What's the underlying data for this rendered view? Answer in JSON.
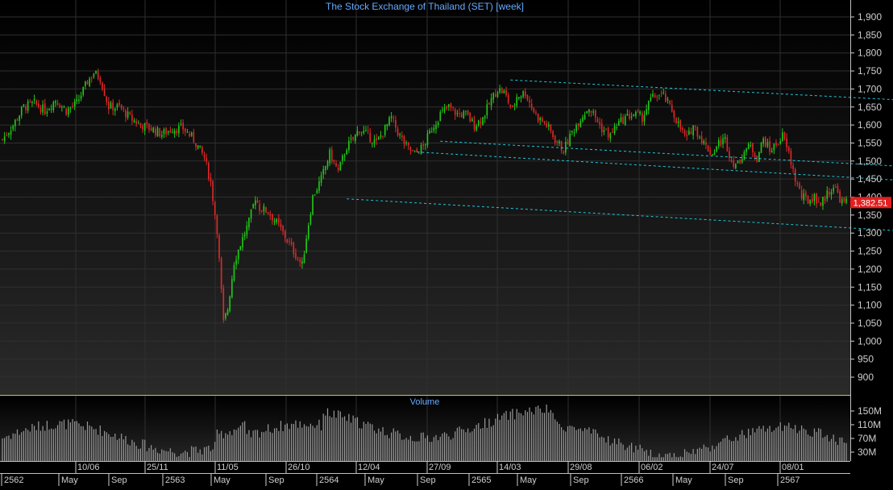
{
  "chart_data": {
    "type": "candlestick",
    "title": "The Stock Exchange of Thailand (SET) [week]",
    "volume_title": "Volume",
    "last_price_label": "1,382.51",
    "last_price": 1382.51,
    "price_axis": {
      "ylim": [
        850,
        1925
      ],
      "ticks": [
        "1,900",
        "1,850",
        "1,800",
        "1,750",
        "1,700",
        "1,650",
        "1,600",
        "1,550",
        "1,500",
        "1,450",
        "1,400",
        "1,350",
        "1,300",
        "1,250",
        "1,200",
        "1,150",
        "1,100",
        "1,050",
        "1,000",
        "950",
        "900"
      ]
    },
    "volume_axis": {
      "ticks": [
        "150M",
        "110M",
        "70M",
        "30M"
      ]
    },
    "date_row_1": [
      "10/06",
      "25/11",
      "11/05",
      "26/10",
      "12/04",
      "27/09",
      "14/03",
      "29/08",
      "06/02",
      "24/07",
      "08/01"
    ],
    "date_row_2": [
      "2562",
      "May",
      "Sep",
      "2563",
      "May",
      "Sep",
      "2564",
      "May",
      "Sep",
      "2565",
      "May",
      "Sep",
      "2566",
      "May",
      "Sep",
      "2567"
    ],
    "price_anchors": [
      [
        0,
        1560
      ],
      [
        5,
        1600
      ],
      [
        10,
        1650
      ],
      [
        15,
        1660
      ],
      [
        20,
        1640
      ],
      [
        25,
        1670
      ],
      [
        30,
        1640
      ],
      [
        35,
        1660
      ],
      [
        40,
        1720
      ],
      [
        43,
        1745
      ],
      [
        46,
        1730
      ],
      [
        50,
        1650
      ],
      [
        55,
        1650
      ],
      [
        60,
        1620
      ],
      [
        65,
        1600
      ],
      [
        70,
        1590
      ],
      [
        75,
        1575
      ],
      [
        80,
        1590
      ],
      [
        85,
        1590
      ],
      [
        90,
        1560
      ],
      [
        95,
        1510
      ],
      [
        98,
        1440
      ],
      [
        101,
        1310
      ],
      [
        104,
        1050
      ],
      [
        106,
        1090
      ],
      [
        109,
        1220
      ],
      [
        112,
        1270
      ],
      [
        116,
        1330
      ],
      [
        119,
        1400
      ],
      [
        121,
        1370
      ],
      [
        125,
        1360
      ],
      [
        130,
        1320
      ],
      [
        133,
        1290
      ],
      [
        137,
        1250
      ],
      [
        141,
        1210
      ],
      [
        143,
        1290
      ],
      [
        146,
        1400
      ],
      [
        150,
        1450
      ],
      [
        154,
        1520
      ],
      [
        158,
        1470
      ],
      [
        162,
        1540
      ],
      [
        165,
        1560
      ],
      [
        168,
        1590
      ],
      [
        172,
        1570
      ],
      [
        176,
        1550
      ],
      [
        180,
        1590
      ],
      [
        183,
        1620
      ],
      [
        186,
        1580
      ],
      [
        190,
        1540
      ],
      [
        194,
        1520
      ],
      [
        198,
        1540
      ],
      [
        202,
        1590
      ],
      [
        206,
        1630
      ],
      [
        210,
        1650
      ],
      [
        214,
        1630
      ],
      [
        218,
        1630
      ],
      [
        222,
        1600
      ],
      [
        226,
        1620
      ],
      [
        230,
        1670
      ],
      [
        233,
        1700
      ],
      [
        236,
        1690
      ],
      [
        240,
        1640
      ],
      [
        242,
        1680
      ],
      [
        246,
        1690
      ],
      [
        249,
        1650
      ],
      [
        252,
        1620
      ],
      [
        256,
        1600
      ],
      [
        260,
        1560
      ],
      [
        264,
        1530
      ],
      [
        268,
        1580
      ],
      [
        272,
        1620
      ],
      [
        276,
        1650
      ],
      [
        279,
        1620
      ],
      [
        282,
        1590
      ],
      [
        286,
        1570
      ],
      [
        289,
        1600
      ],
      [
        293,
        1620
      ],
      [
        297,
        1630
      ],
      [
        301,
        1620
      ],
      [
        305,
        1670
      ],
      [
        308,
        1685
      ],
      [
        311,
        1680
      ],
      [
        315,
        1640
      ],
      [
        319,
        1590
      ],
      [
        322,
        1560
      ],
      [
        325,
        1600
      ],
      [
        328,
        1570
      ],
      [
        331,
        1540
      ],
      [
        334,
        1520
      ],
      [
        337,
        1550
      ],
      [
        340,
        1560
      ],
      [
        343,
        1500
      ],
      [
        346,
        1490
      ],
      [
        349,
        1530
      ],
      [
        352,
        1540
      ],
      [
        355,
        1510
      ],
      [
        358,
        1560
      ],
      [
        361,
        1530
      ],
      [
        364,
        1545
      ],
      [
        367,
        1570
      ],
      [
        370,
        1520
      ],
      [
        373,
        1450
      ],
      [
        376,
        1400
      ],
      [
        379,
        1390
      ],
      [
        382,
        1400
      ],
      [
        385,
        1380
      ],
      [
        388,
        1410
      ],
      [
        391,
        1430
      ],
      [
        393,
        1410
      ],
      [
        395,
        1385
      ]
    ],
    "volume_seed": 7,
    "trend_lines": [
      {
        "p1": [
          239,
          1725
        ],
        "p2": [
          470,
          1655
        ]
      },
      {
        "p1": [
          206,
          1555
        ],
        "p2": [
          470,
          1470
        ]
      },
      {
        "p1": [
          195,
          1525
        ],
        "p2": [
          470,
          1430
        ]
      },
      {
        "p1": [
          162,
          1395
        ],
        "p2": [
          470,
          1290
        ]
      }
    ],
    "colors": {
      "up": "#22c818",
      "down": "#e02828",
      "trend": "#1ec8dc",
      "text": "#66aaff",
      "axis": "#cfcfcf",
      "grid": "#2f2f2f",
      "price_tag": "#e02020",
      "divider": "#d4c248"
    }
  }
}
